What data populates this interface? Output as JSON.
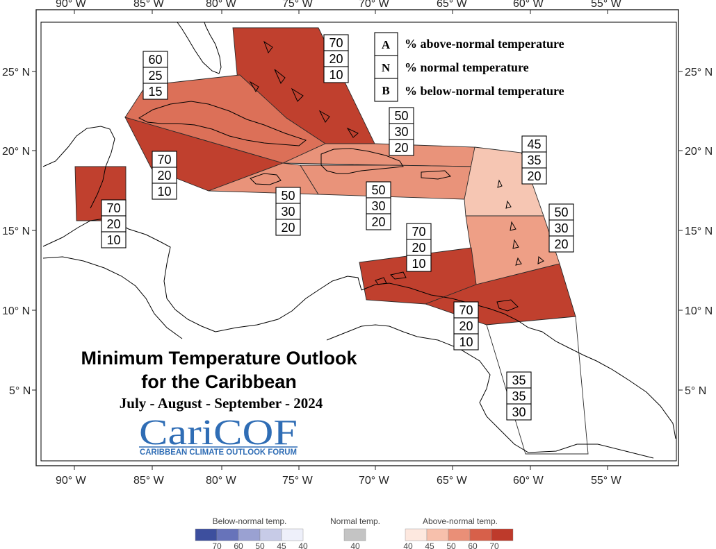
{
  "map": {
    "title_line1": "Minimum Temperature Outlook",
    "title_line2": "for the Caribbean",
    "period": "July - August - September - 2024",
    "logo_text": "CariCOF",
    "logo_subtext": "CARIBBEAN CLIMATE OUTLOOK FORUM",
    "x_ticks": [
      "90° W",
      "85° W",
      "80° W",
      "75° W",
      "70° W",
      "65° W",
      "60° W",
      "55° W"
    ],
    "y_ticks": [
      "25° N",
      "20° N",
      "15° N",
      "10° N",
      "5° N"
    ]
  },
  "key": {
    "rows": [
      {
        "letter": "A",
        "text": "% above-normal temperature"
      },
      {
        "letter": "N",
        "text": "% normal temperature"
      },
      {
        "letter": "B",
        "text": "% below-normal temperature"
      }
    ]
  },
  "regions": [
    {
      "id": "bahamas",
      "above": "70",
      "normal": "20",
      "below": "10",
      "color": "#c0402e"
    },
    {
      "id": "cuba",
      "above": "60",
      "normal": "25",
      "below": "15",
      "color": "#dc7058"
    },
    {
      "id": "jamaica-cayman",
      "above": "70",
      "normal": "20",
      "below": "10",
      "color": "#c0402e"
    },
    {
      "id": "belize",
      "above": "70",
      "normal": "20",
      "below": "10",
      "color": "#c0402e"
    },
    {
      "id": "hispaniola-north",
      "above": "50",
      "normal": "30",
      "below": "20",
      "color": "#e9937a"
    },
    {
      "id": "jamaica-south",
      "above": "50",
      "normal": "30",
      "below": "20",
      "color": "#e9937a"
    },
    {
      "id": "hispaniola-pr",
      "above": "50",
      "normal": "30",
      "below": "20",
      "color": "#e9937a"
    },
    {
      "id": "leeward-islands",
      "above": "45",
      "normal": "35",
      "below": "20",
      "color": "#f6c6b3"
    },
    {
      "id": "windward-islands",
      "above": "50",
      "normal": "30",
      "below": "20",
      "color": "#ee9f86"
    },
    {
      "id": "abc-islands",
      "above": "70",
      "normal": "20",
      "below": "10",
      "color": "#c0402e"
    },
    {
      "id": "trinidad",
      "above": "70",
      "normal": "20",
      "below": "10",
      "color": "#c0402e"
    },
    {
      "id": "guianas",
      "above": "35",
      "normal": "35",
      "below": "30",
      "color": "#ffffff"
    }
  ],
  "colorbar": {
    "below_title": "Below-normal temp.",
    "normal_title": "Normal temp.",
    "above_title": "Above-normal temp.",
    "below_colors": [
      "#3d4f9e",
      "#6773ba",
      "#9aa1d2",
      "#c7cbe7",
      "#eef0fa"
    ],
    "below_ticks": [
      "70",
      "60",
      "50",
      "45",
      "40"
    ],
    "normal_color": "#c4c4c4",
    "normal_tick": "40",
    "above_colors": [
      "#fde8df",
      "#f7c0ac",
      "#ea8f77",
      "#d7604a",
      "#be3a2b"
    ],
    "above_ticks": [
      "40",
      "45",
      "50",
      "60",
      "70"
    ]
  }
}
